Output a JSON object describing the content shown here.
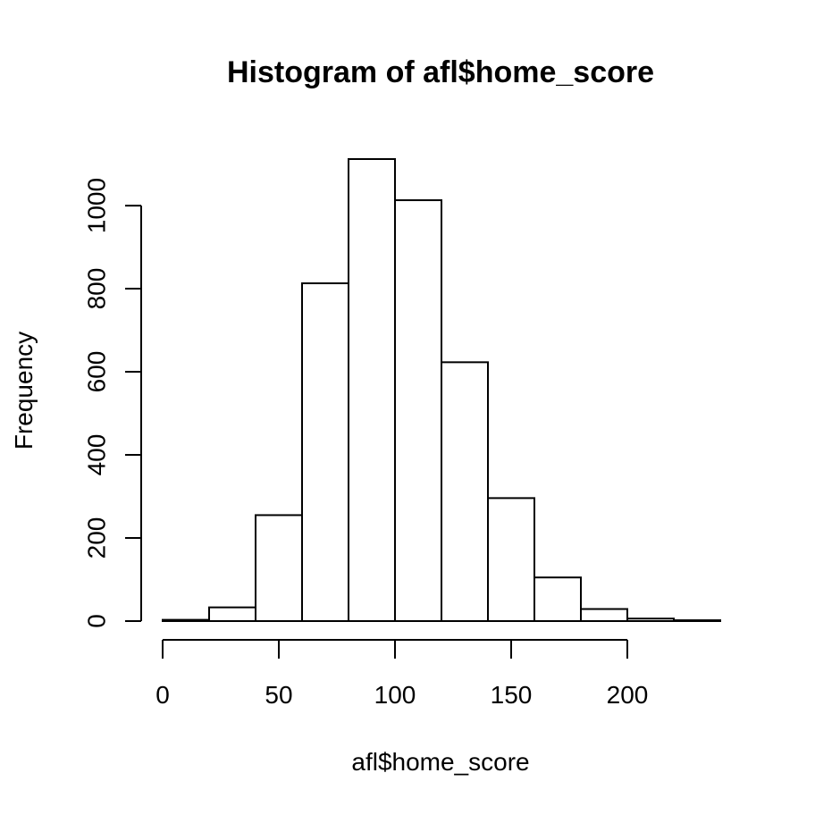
{
  "chart_data": {
    "type": "bar",
    "title": "Histogram of afl$home_score",
    "xlabel": "afl$home_score",
    "ylabel": "Frequency",
    "bins": [
      {
        "start": 0,
        "end": 20,
        "value": 3
      },
      {
        "start": 20,
        "end": 40,
        "value": 33
      },
      {
        "start": 40,
        "end": 60,
        "value": 255
      },
      {
        "start": 60,
        "end": 80,
        "value": 813
      },
      {
        "start": 80,
        "end": 100,
        "value": 1112
      },
      {
        "start": 100,
        "end": 120,
        "value": 1013
      },
      {
        "start": 120,
        "end": 140,
        "value": 623
      },
      {
        "start": 140,
        "end": 160,
        "value": 296
      },
      {
        "start": 160,
        "end": 180,
        "value": 105
      },
      {
        "start": 180,
        "end": 200,
        "value": 29
      },
      {
        "start": 200,
        "end": 220,
        "value": 6
      },
      {
        "start": 220,
        "end": 240,
        "value": 2
      }
    ],
    "x_ticks": [
      0,
      50,
      100,
      150,
      200
    ],
    "y_ticks": [
      0,
      200,
      400,
      600,
      800,
      1000
    ],
    "xlim": [
      0,
      240
    ],
    "ylim": [
      0,
      1112
    ],
    "grid": false,
    "legend": "none"
  }
}
